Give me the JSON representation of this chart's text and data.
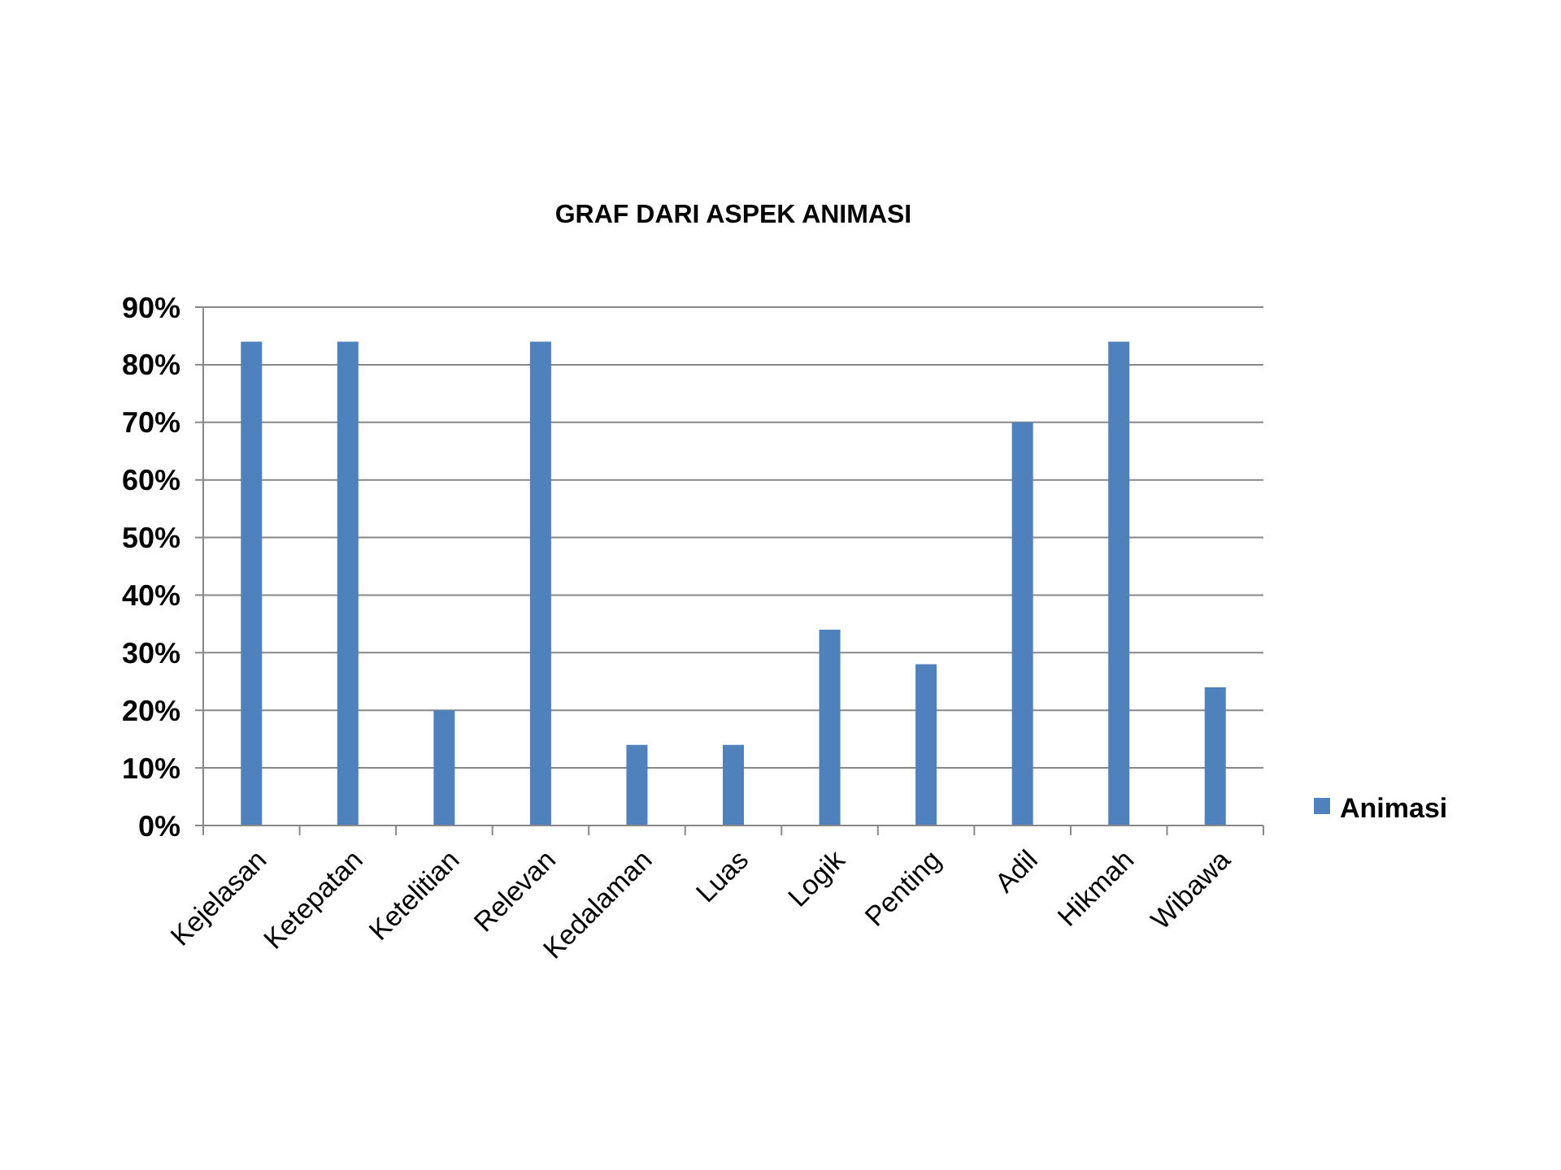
{
  "chart_data": {
    "type": "bar",
    "title": "GRAF DARI ASPEK ANIMASI",
    "categories": [
      "Kejelasan",
      "Ketepatan",
      "Ketelitian",
      "Relevan",
      "Kedalaman",
      "Luas",
      "Logik",
      "Penting",
      "Adil",
      "Hikmah",
      "Wibawa"
    ],
    "series": [
      {
        "name": "Animasi",
        "color": "#4f81bd",
        "values": [
          84,
          84,
          20,
          84,
          14,
          14,
          34,
          28,
          70,
          84,
          24
        ]
      }
    ],
    "ylim": [
      0,
      90
    ],
    "yticks": [
      {
        "value": 0,
        "label": "0%"
      },
      {
        "value": 10,
        "label": "10%"
      },
      {
        "value": 20,
        "label": "20%"
      },
      {
        "value": 30,
        "label": "30%"
      },
      {
        "value": 40,
        "label": "40%"
      },
      {
        "value": 50,
        "label": "50%"
      },
      {
        "value": 60,
        "label": "60%"
      },
      {
        "value": 70,
        "label": "70%"
      },
      {
        "value": 80,
        "label": "80%"
      },
      {
        "value": 90,
        "label": "90%"
      }
    ],
    "grid": "y",
    "legend": "right"
  }
}
